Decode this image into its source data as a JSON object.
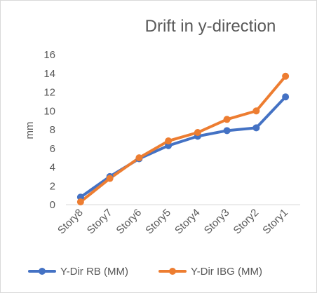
{
  "chart_data": {
    "type": "line",
    "title": "Drift in y-direction",
    "xlabel": "",
    "ylabel": "mm",
    "categories": [
      "Story8",
      "Story7",
      "Story6",
      "Story5",
      "Story4",
      "Story3",
      "Story2",
      "Story1"
    ],
    "ylim": [
      0,
      16
    ],
    "yticks": [
      0,
      2,
      4,
      6,
      8,
      10,
      12,
      14,
      16
    ],
    "grid": false,
    "legend": "bottom",
    "series": [
      {
        "name": "Y-Dir RB (MM)",
        "color": "#4472c4",
        "values": [
          0.8,
          3.0,
          4.9,
          6.3,
          7.3,
          7.9,
          8.2,
          11.5
        ]
      },
      {
        "name": "Y-Dir IBG (MM)",
        "color": "#ed7d31",
        "values": [
          0.3,
          2.8,
          5.0,
          6.8,
          7.7,
          9.1,
          10.0,
          13.7
        ]
      }
    ]
  }
}
